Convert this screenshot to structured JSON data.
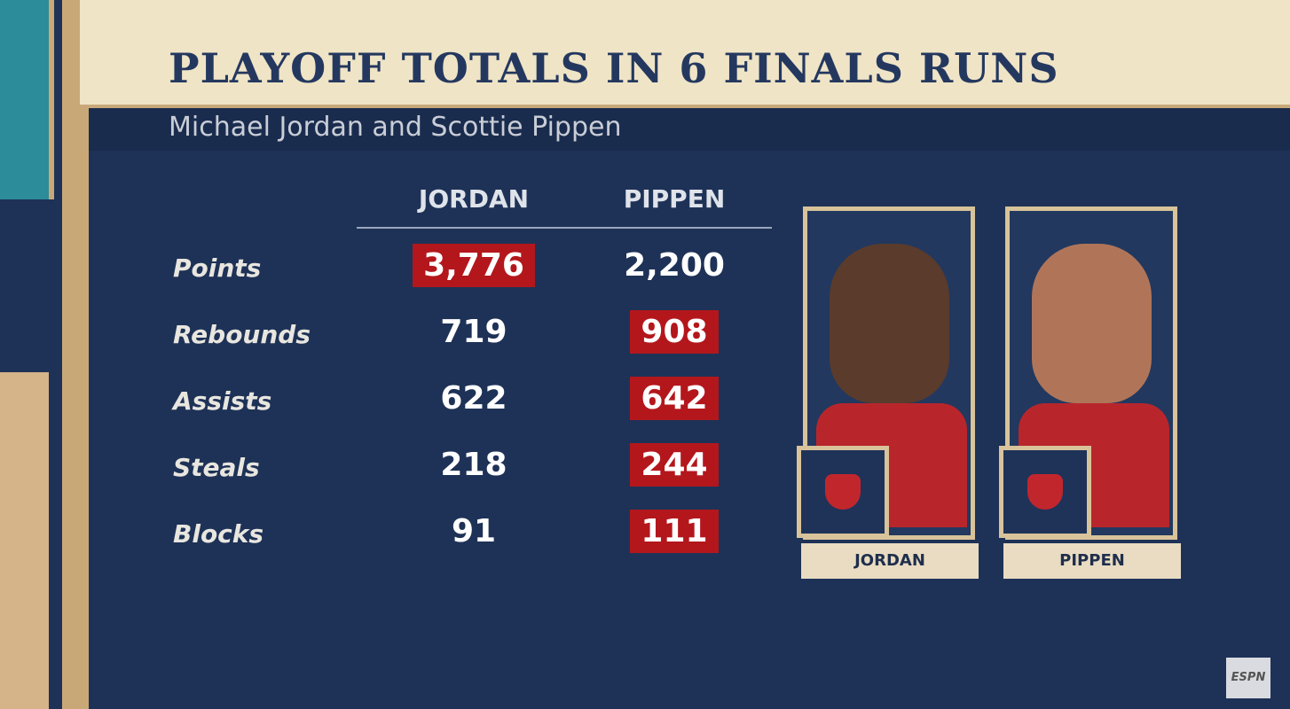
{
  "header": {
    "title": "PLAYOFF TOTALS IN 6 FINALS RUNS",
    "subtitle": "Michael Jordan and Scottie Pippen"
  },
  "table": {
    "columns": [
      "JORDAN",
      "PIPPEN"
    ],
    "rows": [
      {
        "label": "Points",
        "values": [
          "3,776",
          "2,200"
        ],
        "highlight": 0
      },
      {
        "label": "Rebounds",
        "values": [
          "719",
          "908"
        ],
        "highlight": 1
      },
      {
        "label": "Assists",
        "values": [
          "622",
          "642"
        ],
        "highlight": 1
      },
      {
        "label": "Steals",
        "values": [
          "218",
          "244"
        ],
        "highlight": 1
      },
      {
        "label": "Blocks",
        "values": [
          "91",
          "111"
        ],
        "highlight": 1
      }
    ]
  },
  "players": [
    {
      "name": "JORDAN"
    },
    {
      "name": "PIPPEN"
    }
  ],
  "logo": "ESPN"
}
